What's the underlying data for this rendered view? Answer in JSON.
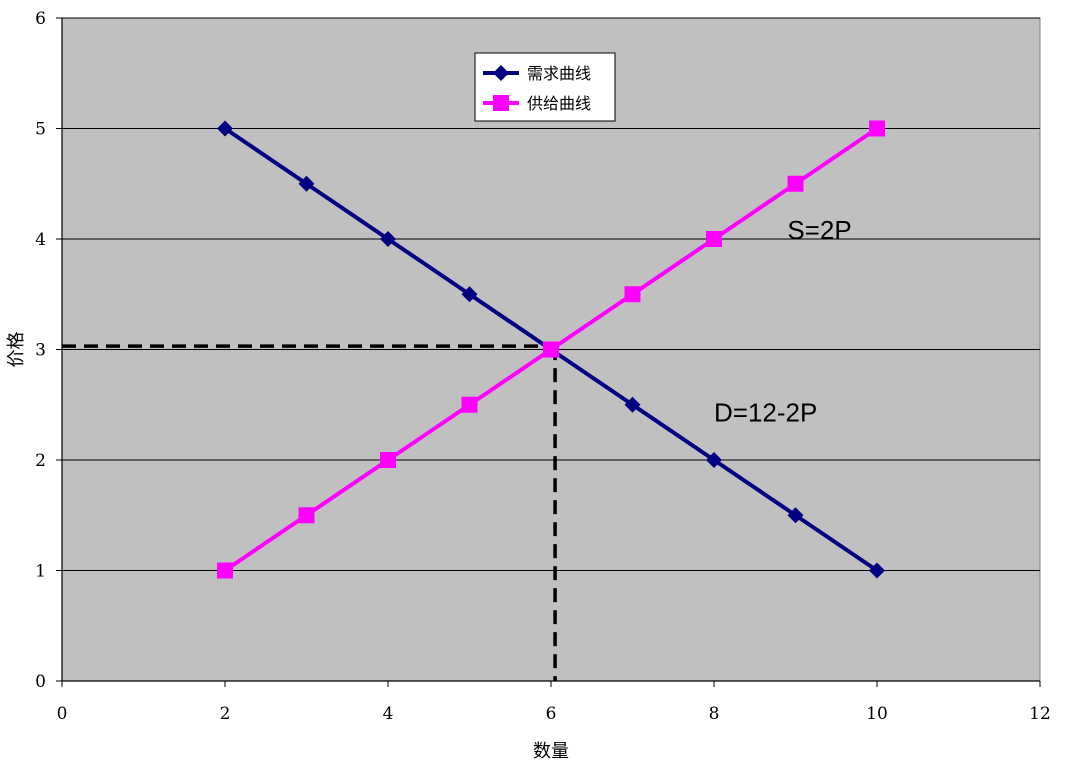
{
  "chart_data": {
    "type": "line",
    "xlabel": "数量",
    "ylabel": "价格",
    "xlim": [
      0,
      12
    ],
    "ylim": [
      0,
      6
    ],
    "x_ticks": [
      0,
      2,
      4,
      6,
      8,
      10,
      12
    ],
    "y_ticks": [
      0,
      1,
      2,
      3,
      4,
      5,
      6
    ],
    "grid": "horizontal",
    "legend_position": "top-center",
    "plot_background": "#c0c0c0",
    "series": [
      {
        "name": "需求曲线",
        "color": "#000080",
        "marker": "diamond",
        "x": [
          2,
          3,
          4,
          5,
          6,
          7,
          8,
          9,
          10
        ],
        "y": [
          5,
          4.5,
          4,
          3.5,
          3,
          2.5,
          2,
          1.5,
          1
        ]
      },
      {
        "name": "供给曲线",
        "color": "#ff00ff",
        "marker": "square",
        "x": [
          2,
          3,
          4,
          5,
          6,
          7,
          8,
          9,
          10
        ],
        "y": [
          1,
          1.5,
          2,
          2.5,
          3,
          3.5,
          4,
          4.5,
          5
        ]
      }
    ],
    "annotations": [
      {
        "text": "S=2P",
        "x": 8.9,
        "y": 4
      },
      {
        "text": "D=12-2P",
        "x": 8,
        "y": 2.35
      }
    ],
    "reference_lines": {
      "style": "dashed",
      "color": "#000000",
      "point": {
        "x": 6.05,
        "y": 3.03
      }
    }
  }
}
